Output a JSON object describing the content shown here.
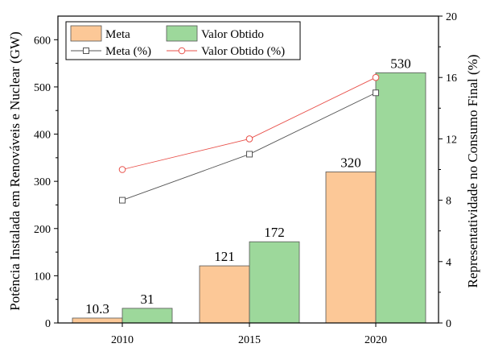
{
  "chart_data": {
    "type": "bar",
    "categories": [
      "2010",
      "2015",
      "2020"
    ],
    "series": [
      {
        "name": "Meta",
        "type": "bar",
        "axis": "left",
        "values": [
          10.3,
          121,
          320
        ],
        "labels": [
          "10.3",
          "121",
          "320"
        ],
        "color": "#fcc897"
      },
      {
        "name": "Valor Obtido",
        "type": "bar",
        "axis": "left",
        "values": [
          31,
          172,
          530
        ],
        "labels": [
          "31",
          "172",
          "530"
        ],
        "color": "#9dd89b"
      },
      {
        "name": "Meta (%)",
        "type": "line",
        "axis": "right",
        "marker": "square",
        "values": [
          8,
          11,
          15
        ],
        "color": "#555555"
      },
      {
        "name": "Valor Obtido (%)",
        "type": "line",
        "axis": "right",
        "marker": "circle",
        "values": [
          10,
          12,
          16
        ],
        "color": "#e8504a"
      }
    ],
    "ylabel": "Potência Instalada em Renováveis e Nuclear (GW)",
    "y2label": "Representatividade no Consumo Final (%)",
    "ylim": [
      0,
      650
    ],
    "yticks": [
      0,
      100,
      200,
      300,
      400,
      500,
      600
    ],
    "y2lim": [
      0,
      20
    ],
    "y2ticks": [
      0,
      4,
      8,
      12,
      16,
      20
    ],
    "legend": "top-left",
    "grid": false
  }
}
